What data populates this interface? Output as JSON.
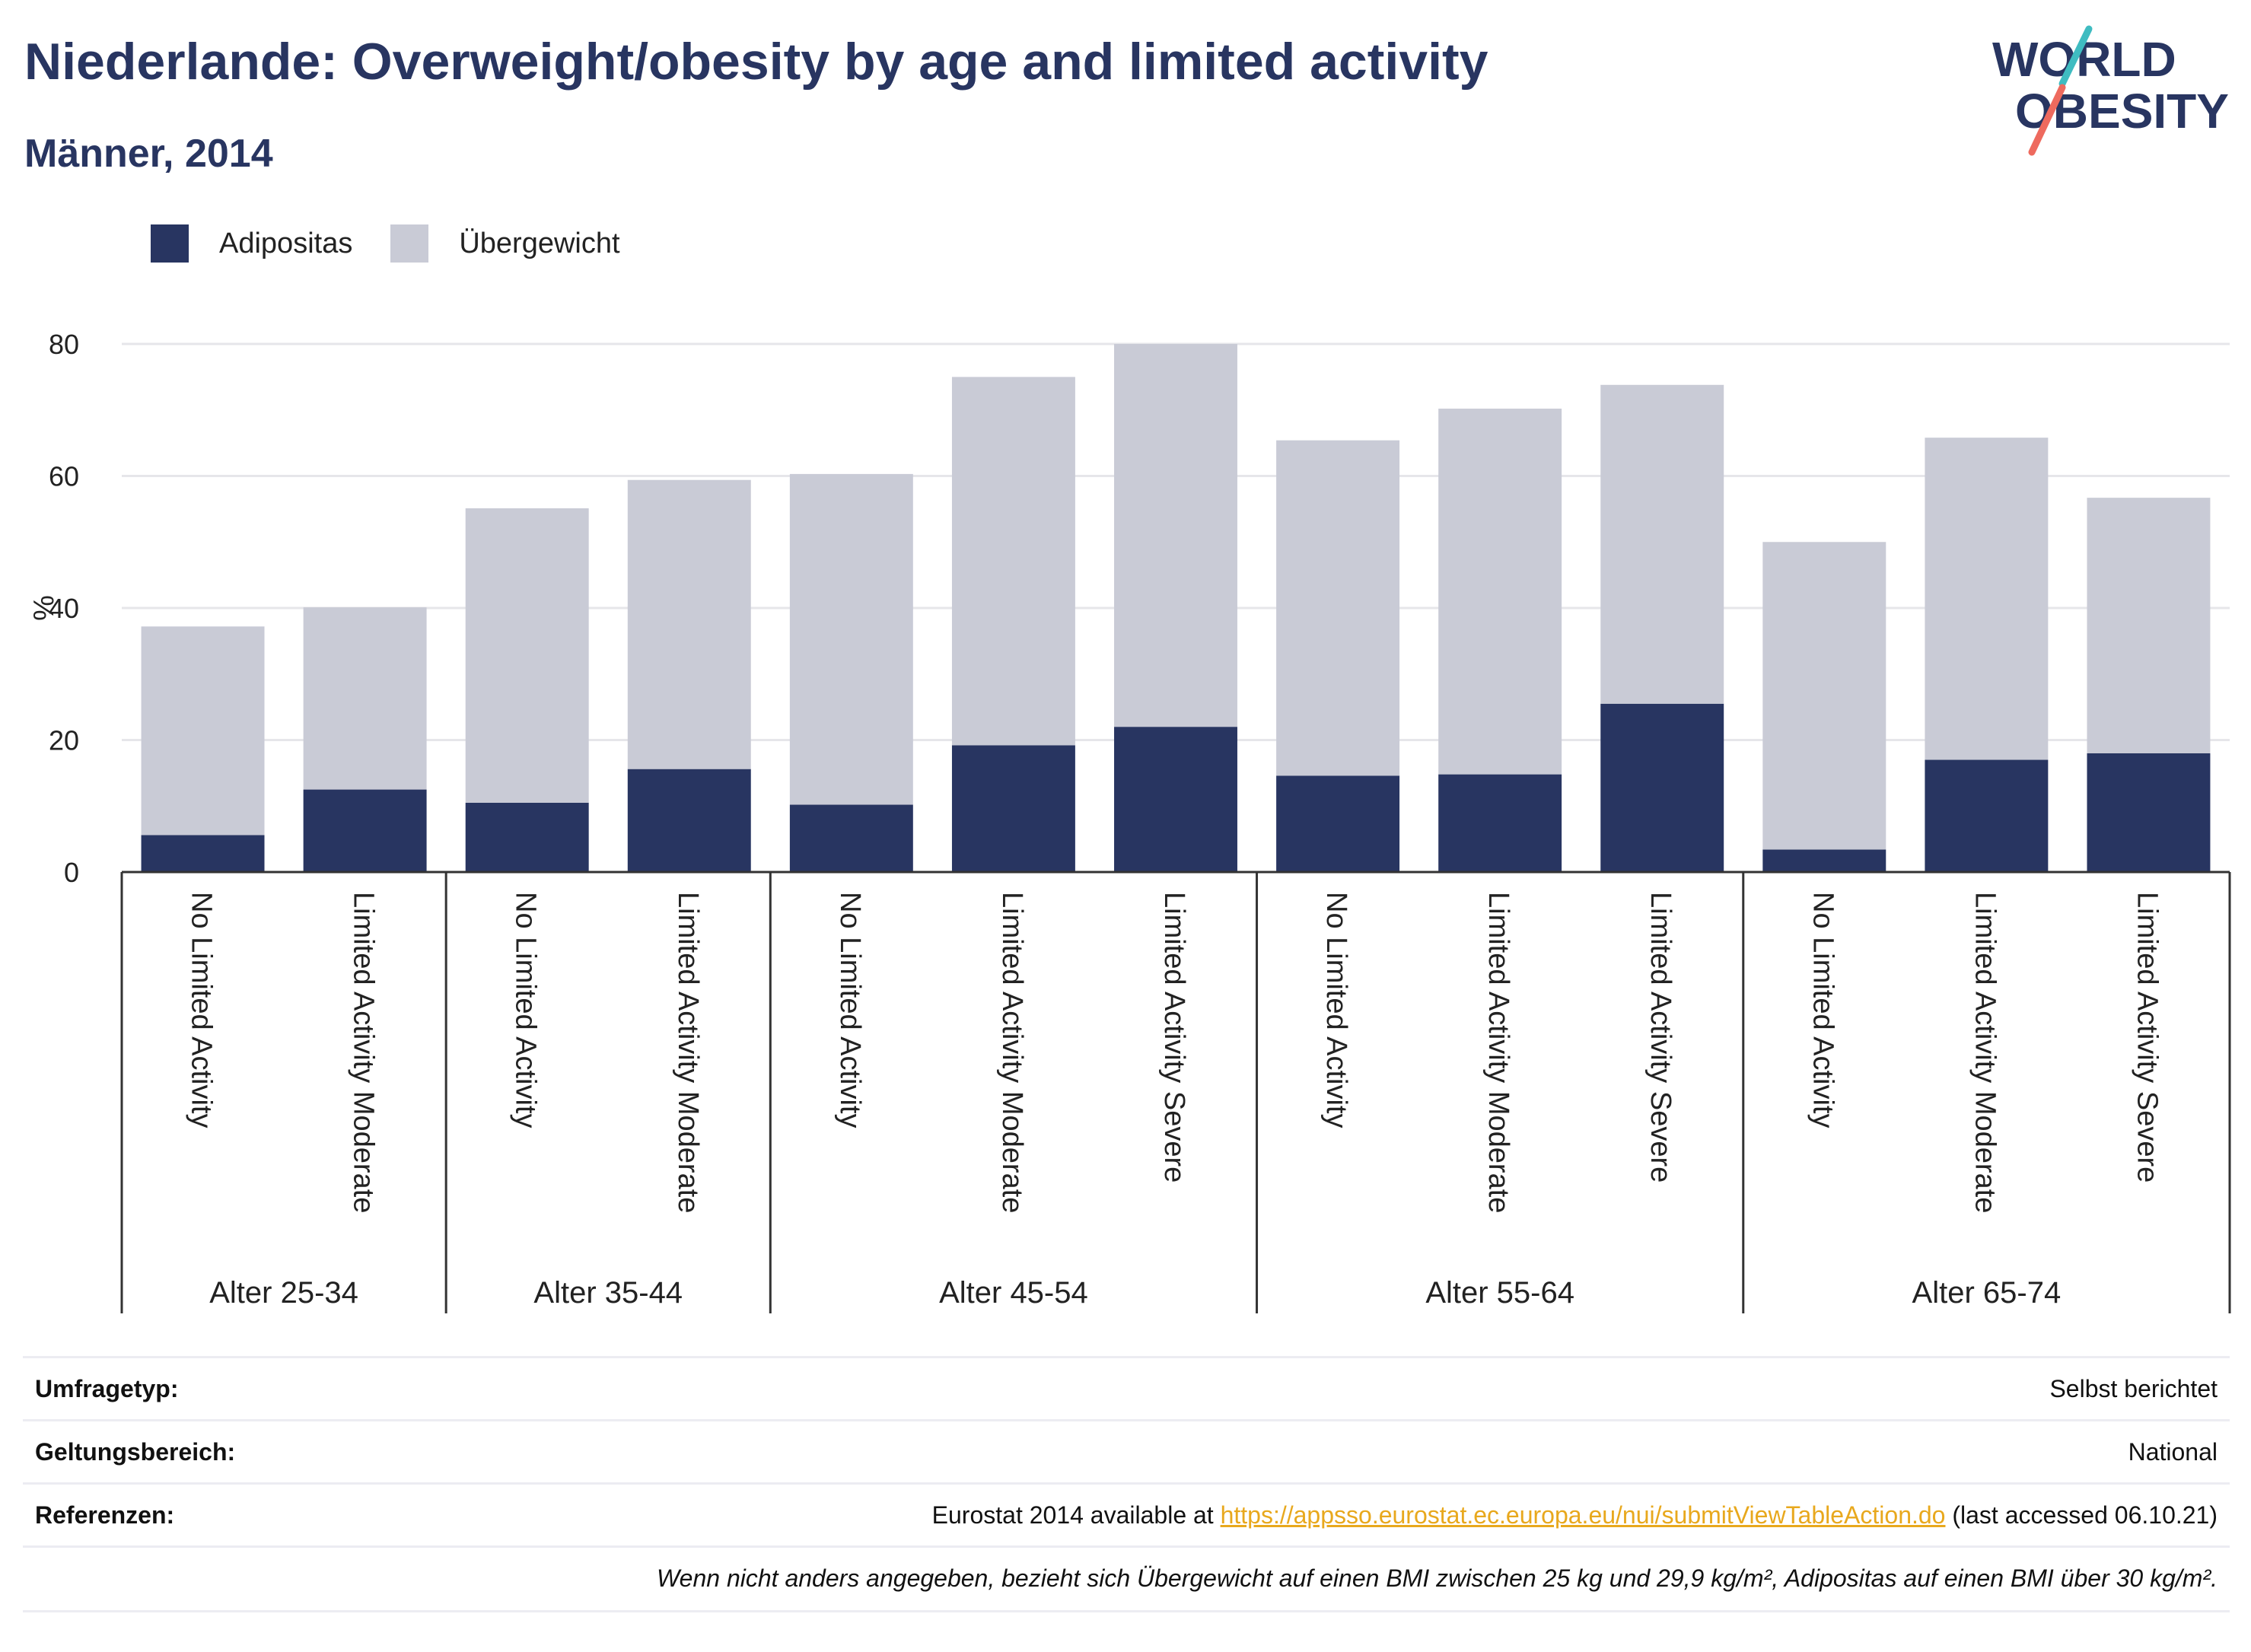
{
  "header": {
    "title": "Niederlande: Overweight/obesity by age and limited activity",
    "subtitle": "Männer, 2014"
  },
  "logo": {
    "line1": "WORLD",
    "line2": "OBESITY",
    "colors": {
      "text": "#283561",
      "slash_teal": "#3fbcc1",
      "slash_coral": "#ee6a5e"
    }
  },
  "legend": [
    {
      "label": "Adipositas",
      "color": "#283561"
    },
    {
      "label": "Übergewicht",
      "color": "#c9cbd6"
    }
  ],
  "chart_data": {
    "type": "bar",
    "stacked": true,
    "ylabel": "%",
    "ylim": [
      0,
      80
    ],
    "yticks": [
      0,
      20,
      40,
      60,
      80
    ],
    "grid": true,
    "legend_position": "top-left",
    "groups": [
      {
        "label": "Alter 25-34",
        "categories": [
          "No Limited Activity",
          "Limited Activity Moderate"
        ]
      },
      {
        "label": "Alter 35-44",
        "categories": [
          "No Limited Activity",
          "Limited Activity Moderate"
        ]
      },
      {
        "label": "Alter 45-54",
        "categories": [
          "No Limited Activity",
          "Limited Activity Moderate",
          "Limited Activity Severe"
        ]
      },
      {
        "label": "Alter 55-64",
        "categories": [
          "No Limited Activity",
          "Limited Activity Moderate",
          "Limited Activity Severe"
        ]
      },
      {
        "label": "Alter 65-74",
        "categories": [
          "No Limited Activity",
          "Limited Activity Moderate",
          "Limited Activity Severe"
        ]
      }
    ],
    "series": [
      {
        "name": "Adipositas",
        "color": "#283561",
        "values": [
          5.6,
          12.5,
          10.5,
          15.6,
          10.2,
          19.2,
          22.0,
          14.6,
          14.8,
          25.5,
          3.4,
          17.0,
          18.0
        ]
      },
      {
        "name": "Übergewicht",
        "color": "#c9cbd6",
        "values": [
          31.6,
          27.6,
          44.6,
          43.8,
          50.1,
          55.8,
          58.0,
          50.8,
          55.4,
          48.3,
          46.6,
          48.8,
          38.7
        ]
      }
    ]
  },
  "info": {
    "survey_type_label": "Umfragetyp:",
    "survey_type_value": "Selbst berichtet",
    "scope_label": "Geltungsbereich:",
    "scope_value": "National",
    "references_label": "Referenzen:",
    "references_prefix": "Eurostat 2014 available at ",
    "references_link": "https://appsso.eurostat.ec.europa.eu/nui/submitViewTableAction.do",
    "references_suffix": " (last accessed 06.10.21)",
    "note": "Wenn nicht anders angegeben, bezieht sich Übergewicht auf einen BMI zwischen 25 kg und 29,9 kg/m², Adipositas auf einen BMI über 30 kg/m²."
  }
}
